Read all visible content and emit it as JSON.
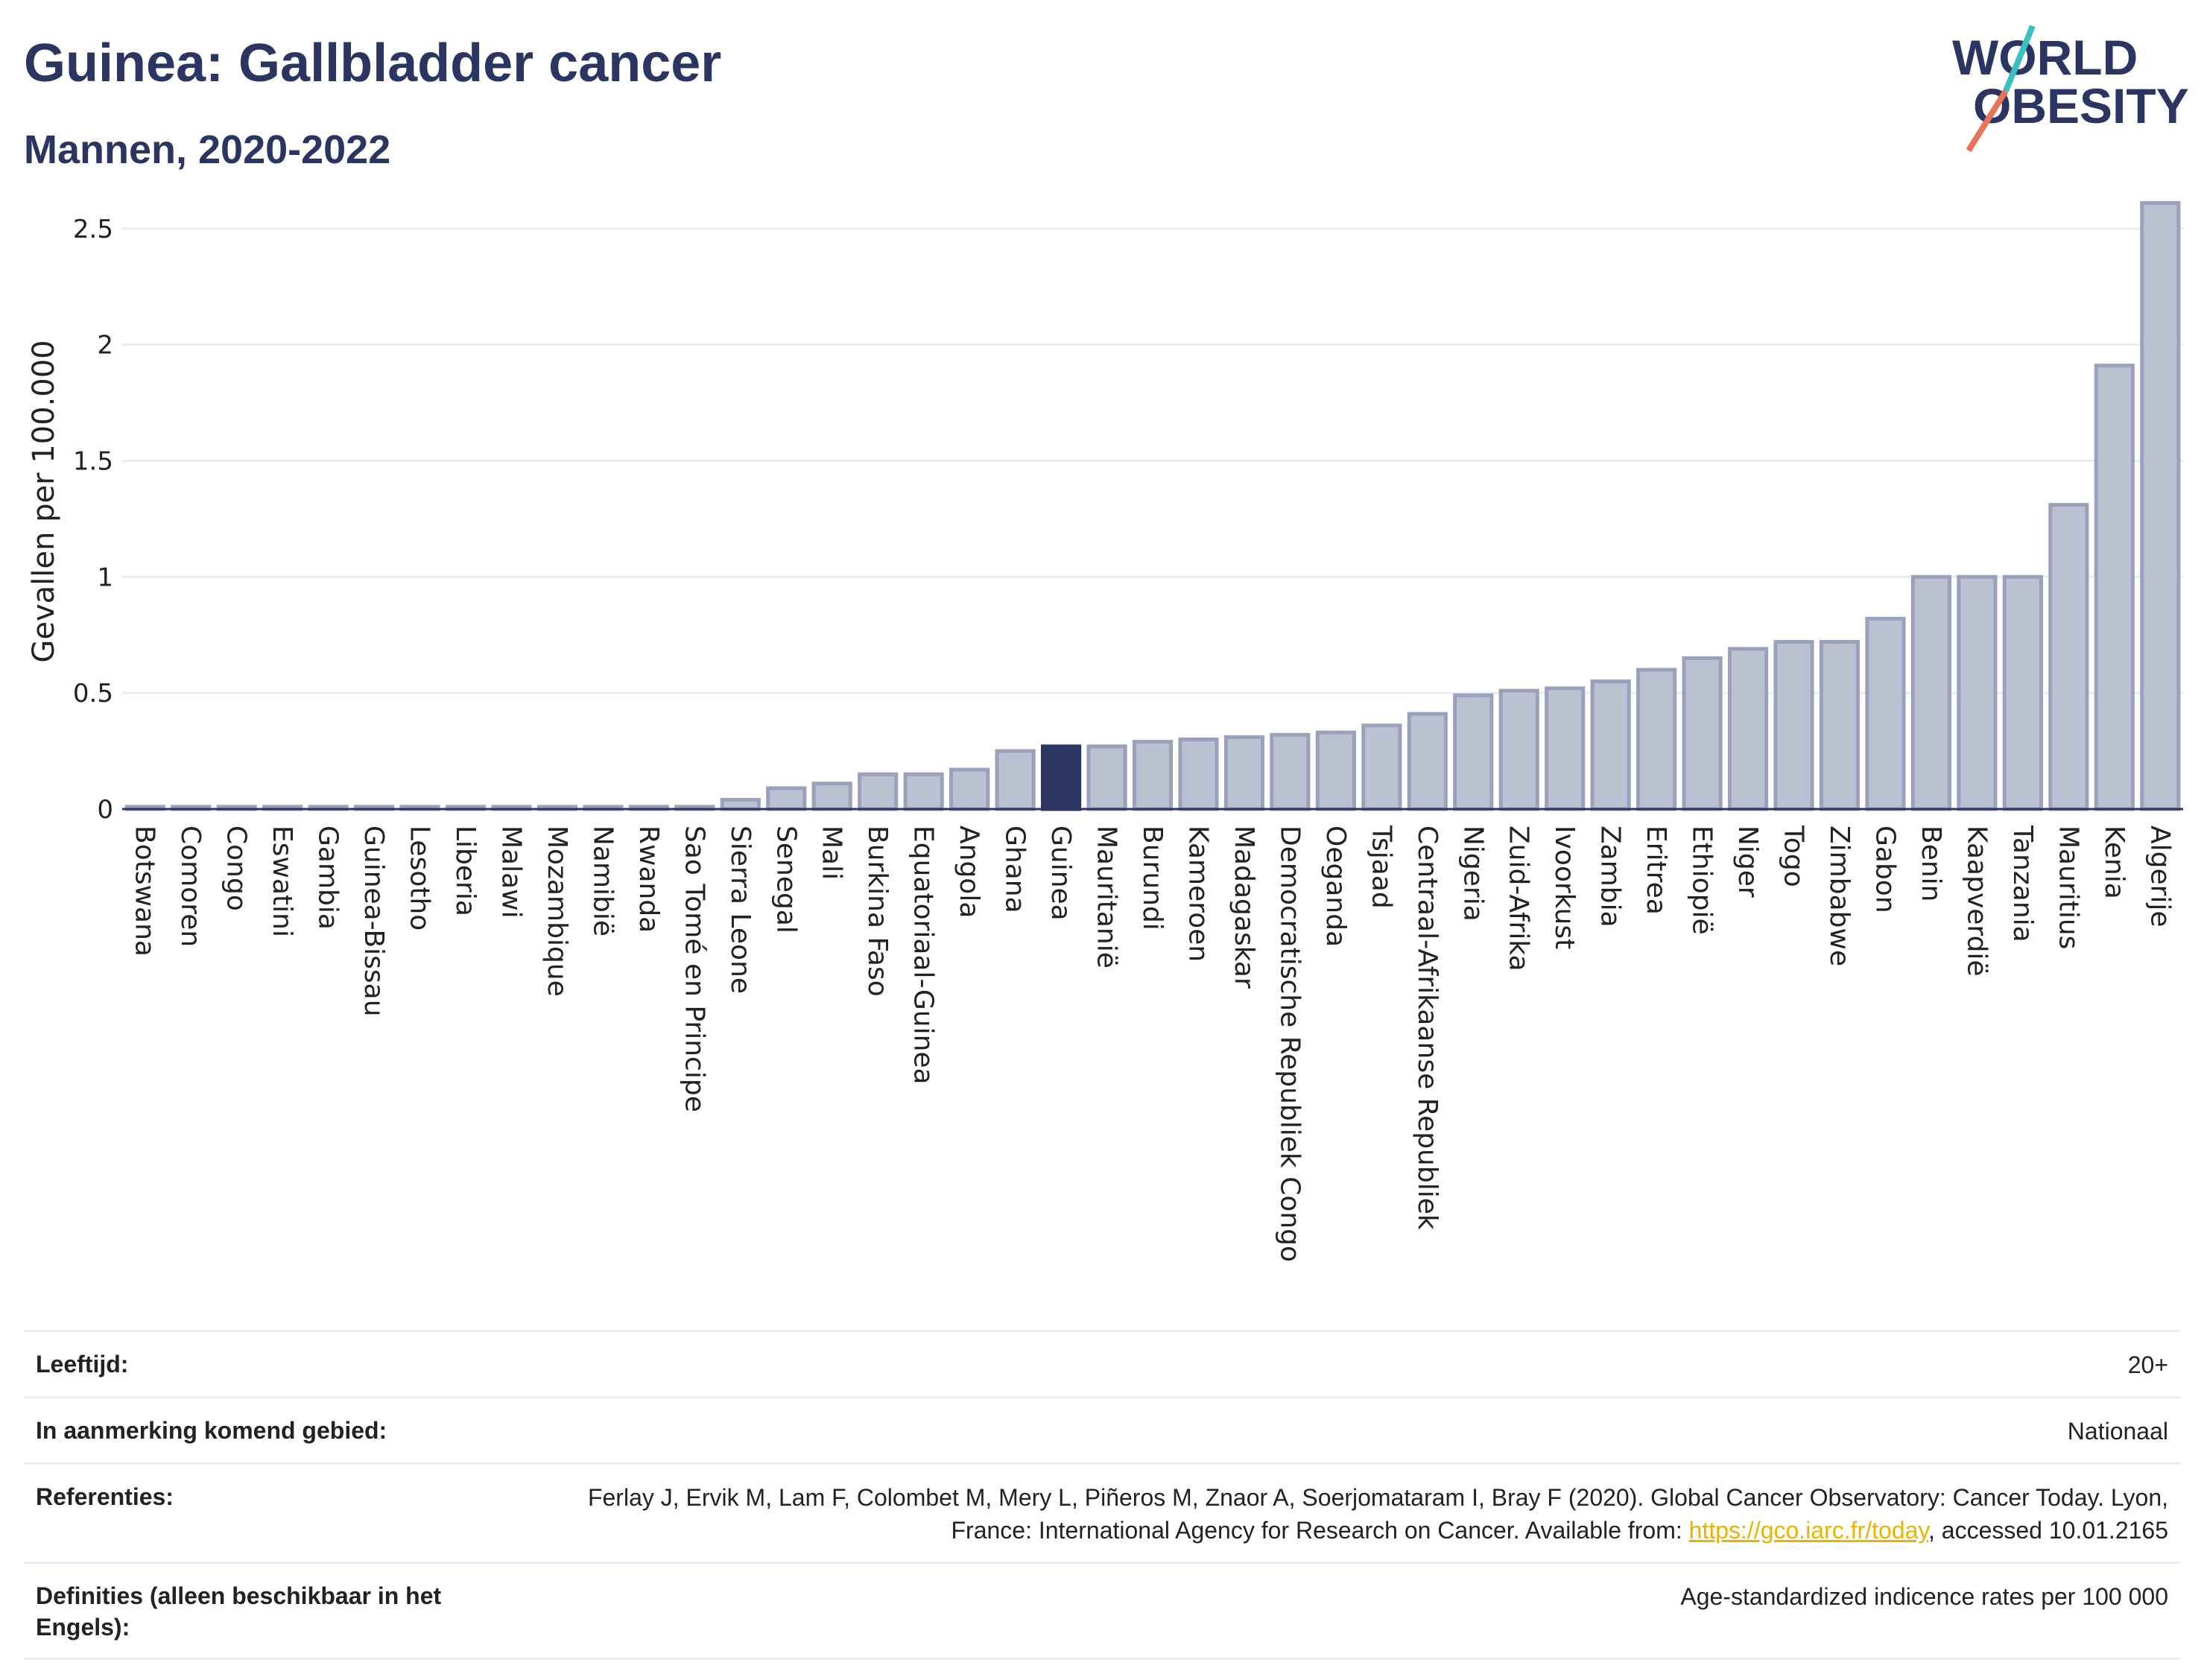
{
  "header": {
    "title": "Guinea: Gallbladder cancer",
    "subtitle": "Mannen, 2020-2022"
  },
  "logo": {
    "line1": "WORLD",
    "line2": "OBESITY",
    "accent_colors": [
      "#3bbfbf",
      "#e8735a"
    ]
  },
  "colors": {
    "bar": "#bcc1d2",
    "bar_edge": "#9aa1bb",
    "highlight": "#2b3561",
    "grid": "#e6edf5",
    "text": "#222222",
    "brand": "#2b3561"
  },
  "chart_data": {
    "type": "bar",
    "ylabel": "Gevallen per 100.000",
    "xlabel": "",
    "ylim": [
      0,
      2.65
    ],
    "yticks": [
      "0",
      "0.5",
      "1",
      "1.5",
      "2",
      "2.5"
    ],
    "highlight": "Guinea",
    "grid": true,
    "categories": [
      "Botswana",
      "Comoren",
      "Congo",
      "Eswatini",
      "Gambia",
      "Guinea-Bissau",
      "Lesotho",
      "Liberia",
      "Malawi",
      "Mozambique",
      "Namibië",
      "Rwanda",
      "Sao Tomé en Principe",
      "Sierra Leone",
      "Senegal",
      "Mali",
      "Burkina Faso",
      "Equatoriaal-Guinea",
      "Angola",
      "Ghana",
      "Guinea",
      "Mauritanië",
      "Burundi",
      "Kameroen",
      "Madagaskar",
      "Democratische Republiek Congo",
      "Oeganda",
      "Tsjaad",
      "Centraal-Afrikaanse Republiek",
      "Nigeria",
      "Zuid-Afrika",
      "Ivoorkust",
      "Zambia",
      "Eritrea",
      "Ethiopië",
      "Niger",
      "Togo",
      "Zimbabwe",
      "Gabon",
      "Benin",
      "Kaapverdië",
      "Tanzania",
      "Mauritius",
      "Kenia",
      "Algerije"
    ],
    "values": [
      0.01,
      0.01,
      0.01,
      0.01,
      0.01,
      0.01,
      0.01,
      0.01,
      0.01,
      0.01,
      0.01,
      0.01,
      0.01,
      0.04,
      0.09,
      0.11,
      0.15,
      0.15,
      0.17,
      0.25,
      0.27,
      0.27,
      0.29,
      0.3,
      0.31,
      0.32,
      0.33,
      0.36,
      0.41,
      0.49,
      0.51,
      0.52,
      0.55,
      0.6,
      0.65,
      0.69,
      0.72,
      0.72,
      0.82,
      1.0,
      1.0,
      1.0,
      1.31,
      1.91,
      2.61
    ]
  },
  "info": {
    "rows": [
      {
        "label": "Leeftijd:",
        "value": "20+"
      },
      {
        "label": "In aanmerking komend gebied:",
        "value": "Nationaal"
      },
      {
        "label": "Referenties:",
        "value_prefix": "Ferlay J, Ervik M, Lam F, Colombet M, Mery L, Piñeros M, Znaor A, Soerjomataram I, Bray F (2020). Global Cancer Observatory: Cancer Today. Lyon, France: International Agency for Research on Cancer. Available from: ",
        "link": "https://gco.iarc.fr/today",
        "value_suffix": ", accessed 10.01.2165"
      },
      {
        "label": "Definities (alleen beschikbaar in het Engels):",
        "value": "Age-standardized indicence rates per 100 000"
      }
    ]
  }
}
